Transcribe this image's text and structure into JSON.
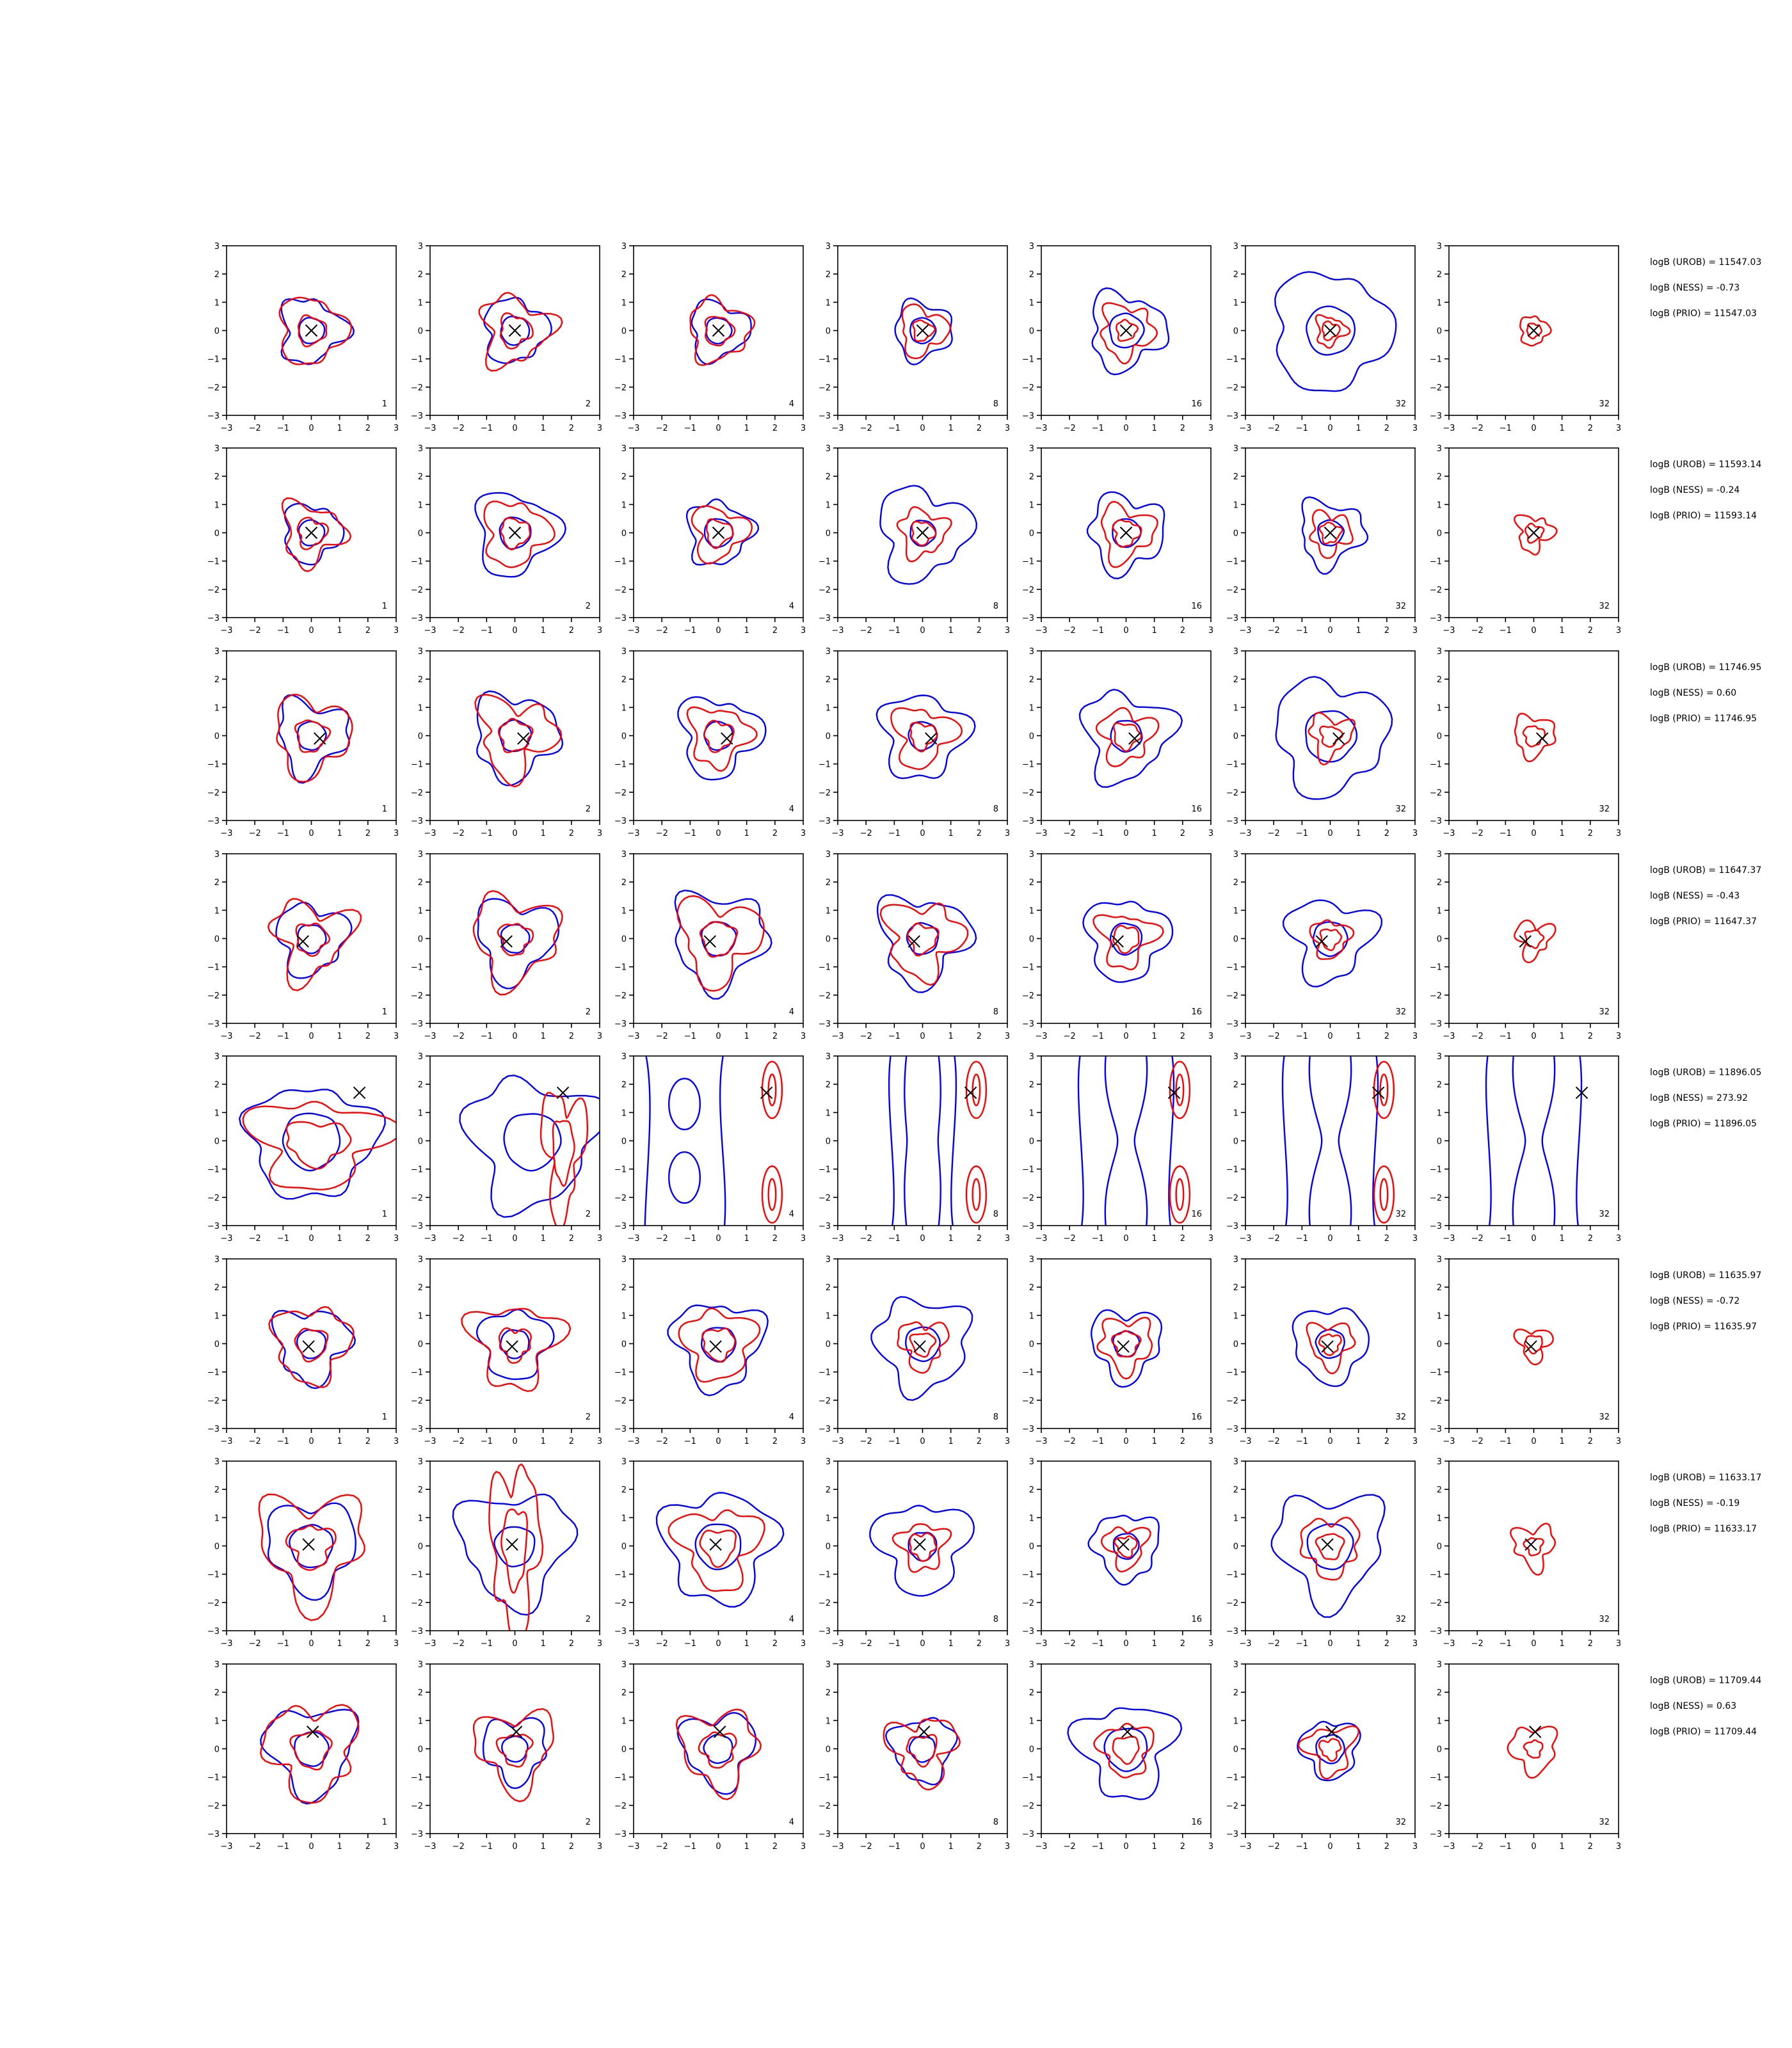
{
  "figure": {
    "columns": [
      {
        "panel_label": "1"
      },
      {
        "panel_label": "2"
      },
      {
        "panel_label": "4"
      },
      {
        "panel_label": "8"
      },
      {
        "panel_label": "16"
      },
      {
        "panel_label": "32"
      },
      {
        "panel_label": "32"
      }
    ],
    "colors": {
      "blue_contour": "#0000ff",
      "red_contour": "#ff0000",
      "marker": "#000000",
      "axes": "#000000"
    }
  },
  "chart_data": {
    "type": "contour",
    "layout": "grid of 8 rows x 7 columns of small contour panels",
    "xlim": [
      -3,
      3
    ],
    "ylim": [
      -3,
      3
    ],
    "xticks": [
      "−3",
      "−2",
      "−1",
      "0",
      "1",
      "2",
      "3"
    ],
    "yticks": [
      "−3",
      "−2",
      "−1",
      "0",
      "1",
      "2",
      "3"
    ],
    "column_labels": [
      "1",
      "2",
      "4",
      "8",
      "16",
      "32",
      "32"
    ],
    "rows": [
      {
        "marker": [
          0.0,
          0.0
        ],
        "logB_UROB": "logB (UROB) = 11547.03",
        "logB_NESS": "logB (NESS) = -0.73",
        "logB_PRIO": "logB (PRIO) = 11547.03",
        "panels": [
          {
            "blue": [
              1.1,
              0.45
            ],
            "red": [
              1.15,
              0.5
            ]
          },
          {
            "blue": [
              1.1,
              0.5
            ],
            "red": [
              1.15,
              0.55
            ]
          },
          {
            "blue": [
              1.0,
              0.45
            ],
            "red": [
              1.05,
              0.5
            ]
          },
          {
            "blue": [
              1.0,
              0.45
            ],
            "red": [
              0.8,
              0.35
            ]
          },
          {
            "blue": [
              1.3,
              0.6
            ],
            "red": [
              0.9,
              0.35
            ]
          },
          {
            "blue": [
              2.05,
              0.85
            ],
            "red": [
              0.5,
              0.3
            ]
          },
          {
            "blue": [],
            "red": [
              0.5,
              0.25
            ]
          }
        ]
      },
      {
        "marker": [
          0.0,
          0.0
        ],
        "logB_UROB": "logB (UROB) = 11593.14",
        "logB_NESS": "logB (NESS) = -0.24",
        "logB_PRIO": "logB (PRIO) = 11593.14",
        "panels": [
          {
            "blue": [
              1.0,
              0.45
            ],
            "red": [
              1.0,
              0.5
            ]
          },
          {
            "blue": [
              1.4,
              0.55
            ],
            "red": [
              1.1,
              0.5
            ]
          },
          {
            "blue": [
              1.1,
              0.5
            ],
            "red": [
              0.9,
              0.45
            ]
          },
          {
            "blue": [
              1.55,
              0.45
            ],
            "red": [
              0.8,
              0.4
            ]
          },
          {
            "blue": [
              1.3,
              0.5
            ],
            "red": [
              0.9,
              0.45
            ]
          },
          {
            "blue": [
              1.1,
              0.45
            ],
            "red": [
              0.7,
              0.35
            ]
          },
          {
            "blue": [],
            "red": [
              0.6,
              0.3
            ]
          }
        ]
      },
      {
        "marker": [
          0.3,
          -0.1
        ],
        "logB_UROB": "logB (UROB) = 11746.95",
        "logB_NESS": "logB (NESS) = 0.60",
        "logB_PRIO": "logB (PRIO) = 11746.95",
        "panels": [
          {
            "blue": [
              1.2,
              0.5
            ],
            "red": [
              1.3,
              0.55
            ]
          },
          {
            "blue": [
              1.45,
              0.55
            ],
            "red": [
              1.25,
              0.55
            ]
          },
          {
            "blue": [
              1.35,
              0.5
            ],
            "red": [
              1.0,
              0.5
            ]
          },
          {
            "blue": [
              1.45,
              0.5
            ],
            "red": [
              1.0,
              0.45
            ]
          },
          {
            "blue": [
              1.5,
              0.55
            ],
            "red": [
              0.9,
              0.45
            ]
          },
          {
            "blue": [
              1.95,
              0.9
            ],
            "red": [
              0.7,
              0.35
            ]
          },
          {
            "blue": [],
            "red": [
              0.7,
              0.35
            ]
          }
        ]
      },
      {
        "marker": [
          -0.3,
          -0.1
        ],
        "logB_UROB": "logB (UROB) = 11647.37",
        "logB_NESS": "logB (NESS) = -0.43",
        "logB_PRIO": "logB (PRIO) = 11647.37",
        "panels": [
          {
            "blue": [
              1.2,
              0.5
            ],
            "red": [
              1.25,
              0.55
            ]
          },
          {
            "blue": [
              1.35,
              0.5
            ],
            "red": [
              1.45,
              0.55
            ]
          },
          {
            "blue": [
              1.6,
              0.6
            ],
            "red": [
              1.35,
              0.6
            ]
          },
          {
            "blue": [
              1.5,
              0.55
            ],
            "red": [
              1.25,
              0.5
            ]
          },
          {
            "blue": [
              1.4,
              0.55
            ],
            "red": [
              0.9,
              0.45
            ]
          },
          {
            "blue": [
              1.4,
              0.6
            ],
            "red": [
              0.65,
              0.35
            ]
          },
          {
            "blue": [],
            "red": [
              0.6,
              0.3
            ]
          }
        ]
      },
      {
        "marker": [
          1.7,
          1.7
        ],
        "logB_UROB": "logB (UROB) = 11896.05",
        "logB_NESS": "logB (NESS) = 273.92",
        "logB_PRIO": "logB (PRIO) = 11896.05",
        "panels": [
          {
            "blue": [
              2.25,
              1.0
            ],
            "red": [
              2.0,
              1.0
            ]
          },
          {
            "blue": [
              2.2,
              1.0
            ],
            "red": [
              1.5,
              0.8
            ]
          },
          {
            "blue": [],
            "red": []
          },
          {
            "blue": [],
            "red": []
          },
          {
            "blue": [],
            "red": []
          },
          {
            "blue": [],
            "red": []
          },
          {
            "blue": [],
            "red": []
          }
        ]
      },
      {
        "marker": [
          -0.1,
          -0.1
        ],
        "logB_UROB": "logB (UROB) = 11635.97",
        "logB_NESS": "logB (NESS) = -0.72",
        "logB_PRIO": "logB (PRIO) = 11635.97",
        "panels": [
          {
            "blue": [
              1.25,
              0.5
            ],
            "red": [
              1.3,
              0.55
            ]
          },
          {
            "blue": [
              1.2,
              0.5
            ],
            "red": [
              1.4,
              0.55
            ]
          },
          {
            "blue": [
              1.5,
              0.6
            ],
            "red": [
              1.2,
              0.55
            ]
          },
          {
            "blue": [
              1.6,
              0.6
            ],
            "red": [
              0.8,
              0.4
            ]
          },
          {
            "blue": [
              1.2,
              0.45
            ],
            "red": [
              0.9,
              0.45
            ]
          },
          {
            "blue": [
              1.3,
              0.5
            ],
            "red": [
              0.75,
              0.35
            ]
          },
          {
            "blue": [],
            "red": [
              0.55,
              0.3
            ]
          }
        ]
      },
      {
        "marker": [
          -0.1,
          0.05
        ],
        "logB_UROB": "logB (UROB) = 11633.17",
        "logB_NESS": "logB (NESS) = -0.19",
        "logB_PRIO": "logB (PRIO) = 11633.17",
        "panels": [
          {
            "blue": [
              1.55,
              0.75
            ],
            "red": [
              1.75,
              0.75
            ]
          },
          {
            "blue": [
              1.9,
              0.7
            ],
            "red": [
              2.8,
              1.4
            ]
          },
          {
            "blue": [
              1.9,
              0.8
            ],
            "red": [
              1.35,
              0.6
            ]
          },
          {
            "blue": [
              1.55,
              0.5
            ],
            "red": [
              0.8,
              0.45
            ]
          },
          {
            "blue": [
              1.15,
              0.45
            ],
            "red": [
              0.7,
              0.35
            ]
          },
          {
            "blue": [
              1.85,
              0.8
            ],
            "red": [
              1.0,
              0.45
            ]
          },
          {
            "blue": [],
            "red": [
              0.7,
              0.3
            ]
          }
        ]
      },
      {
        "marker": [
          0.05,
          0.6
        ],
        "logB_UROB": "logB (UROB) = 11709.44",
        "logB_NESS": "logB (NESS) = 0.63",
        "logB_PRIO": "logB (PRIO) = 11709.44",
        "panels": [
          {
            "blue": [
              1.5,
              0.6
            ],
            "red": [
              1.55,
              0.65
            ]
          },
          {
            "blue": [
              1.1,
              0.45
            ],
            "red": [
              1.3,
              0.55
            ]
          },
          {
            "blue": [
              1.25,
              0.5
            ],
            "red": [
              1.3,
              0.6
            ]
          },
          {
            "blue": [
              1.1,
              0.45
            ],
            "red": [
              1.1,
              0.5
            ]
          },
          {
            "blue": [
              1.6,
              0.75
            ],
            "red": [
              0.9,
              0.45
            ]
          },
          {
            "blue": [
              1.0,
              0.5
            ],
            "red": [
              0.8,
              0.35
            ]
          },
          {
            "blue": [],
            "red": [
              0.8,
              0.3
            ]
          }
        ]
      }
    ]
  }
}
